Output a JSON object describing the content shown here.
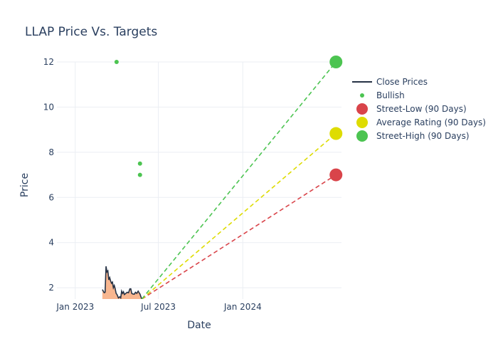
{
  "chart_data": {
    "type": "line",
    "title": "LLAP Price Vs. Targets",
    "xlabel": "Date",
    "ylabel": "Price",
    "xlim": [
      "2022-11-22",
      "2024-08-03"
    ],
    "ylim": [
      1.5,
      12.0
    ],
    "x_ticks": [
      {
        "date": "2023-01-01",
        "label": "Jan 2023"
      },
      {
        "date": "2023-07-01",
        "label": "Jul 2023"
      },
      {
        "date": "2024-01-01",
        "label": "Jan 2024"
      }
    ],
    "y_ticks": [
      2,
      4,
      6,
      8,
      10,
      12
    ],
    "grid": true,
    "legend_position": "top-right",
    "series": [
      {
        "name": "Close Prices",
        "kind": "line-area",
        "color": "#263245",
        "fill_color": "#f8b68f",
        "points": [
          [
            "2023-03-01",
            1.92
          ],
          [
            "2023-03-03",
            1.85
          ],
          [
            "2023-03-05",
            1.78
          ],
          [
            "2023-03-07",
            1.8
          ],
          [
            "2023-03-09",
            2.95
          ],
          [
            "2023-03-11",
            2.7
          ],
          [
            "2023-03-13",
            2.75
          ],
          [
            "2023-03-15",
            2.35
          ],
          [
            "2023-03-17",
            2.45
          ],
          [
            "2023-03-19",
            2.3
          ],
          [
            "2023-03-21",
            2.2
          ],
          [
            "2023-03-23",
            2.25
          ],
          [
            "2023-03-25",
            2.0
          ],
          [
            "2023-03-27",
            2.1
          ],
          [
            "2023-03-29",
            1.95
          ],
          [
            "2023-03-31",
            1.75
          ],
          [
            "2023-04-02",
            1.7
          ],
          [
            "2023-04-05",
            1.55
          ],
          [
            "2023-04-08",
            1.6
          ],
          [
            "2023-04-10",
            1.55
          ],
          [
            "2023-04-12",
            1.85
          ],
          [
            "2023-04-14",
            1.75
          ],
          [
            "2023-04-16",
            1.82
          ],
          [
            "2023-04-18",
            1.7
          ],
          [
            "2023-04-21",
            1.75
          ],
          [
            "2023-04-24",
            1.8
          ],
          [
            "2023-04-27",
            1.78
          ],
          [
            "2023-04-30",
            1.95
          ],
          [
            "2023-05-02",
            1.95
          ],
          [
            "2023-05-04",
            1.75
          ],
          [
            "2023-05-07",
            1.72
          ],
          [
            "2023-05-10",
            1.72
          ],
          [
            "2023-05-12",
            1.8
          ],
          [
            "2023-05-15",
            1.75
          ],
          [
            "2023-05-18",
            1.85
          ],
          [
            "2023-05-20",
            1.78
          ],
          [
            "2023-05-22",
            1.72
          ],
          [
            "2023-05-24",
            1.6
          ],
          [
            "2023-05-26",
            1.5
          ]
        ]
      },
      {
        "name": "Bullish",
        "kind": "scatter",
        "color": "#4cc451",
        "points": [
          [
            "2023-04-01",
            12.0
          ],
          [
            "2023-05-22",
            7.5
          ],
          [
            "2023-05-22",
            7.0
          ]
        ]
      },
      {
        "name": "Street-Low (90 Days)",
        "kind": "target",
        "color": "#d9444a",
        "from": [
          "2023-05-26",
          1.5
        ],
        "point": [
          "2024-07-22",
          7.0
        ]
      },
      {
        "name": "Average Rating (90 Days)",
        "kind": "target",
        "color": "#dedc02",
        "from": [
          "2023-05-26",
          1.5
        ],
        "point": [
          "2024-07-22",
          8.83
        ]
      },
      {
        "name": "Street-High (90 Days)",
        "kind": "target",
        "color": "#4cc451",
        "from": [
          "2023-05-26",
          1.5
        ],
        "point": [
          "2024-07-22",
          12.0
        ]
      }
    ]
  }
}
